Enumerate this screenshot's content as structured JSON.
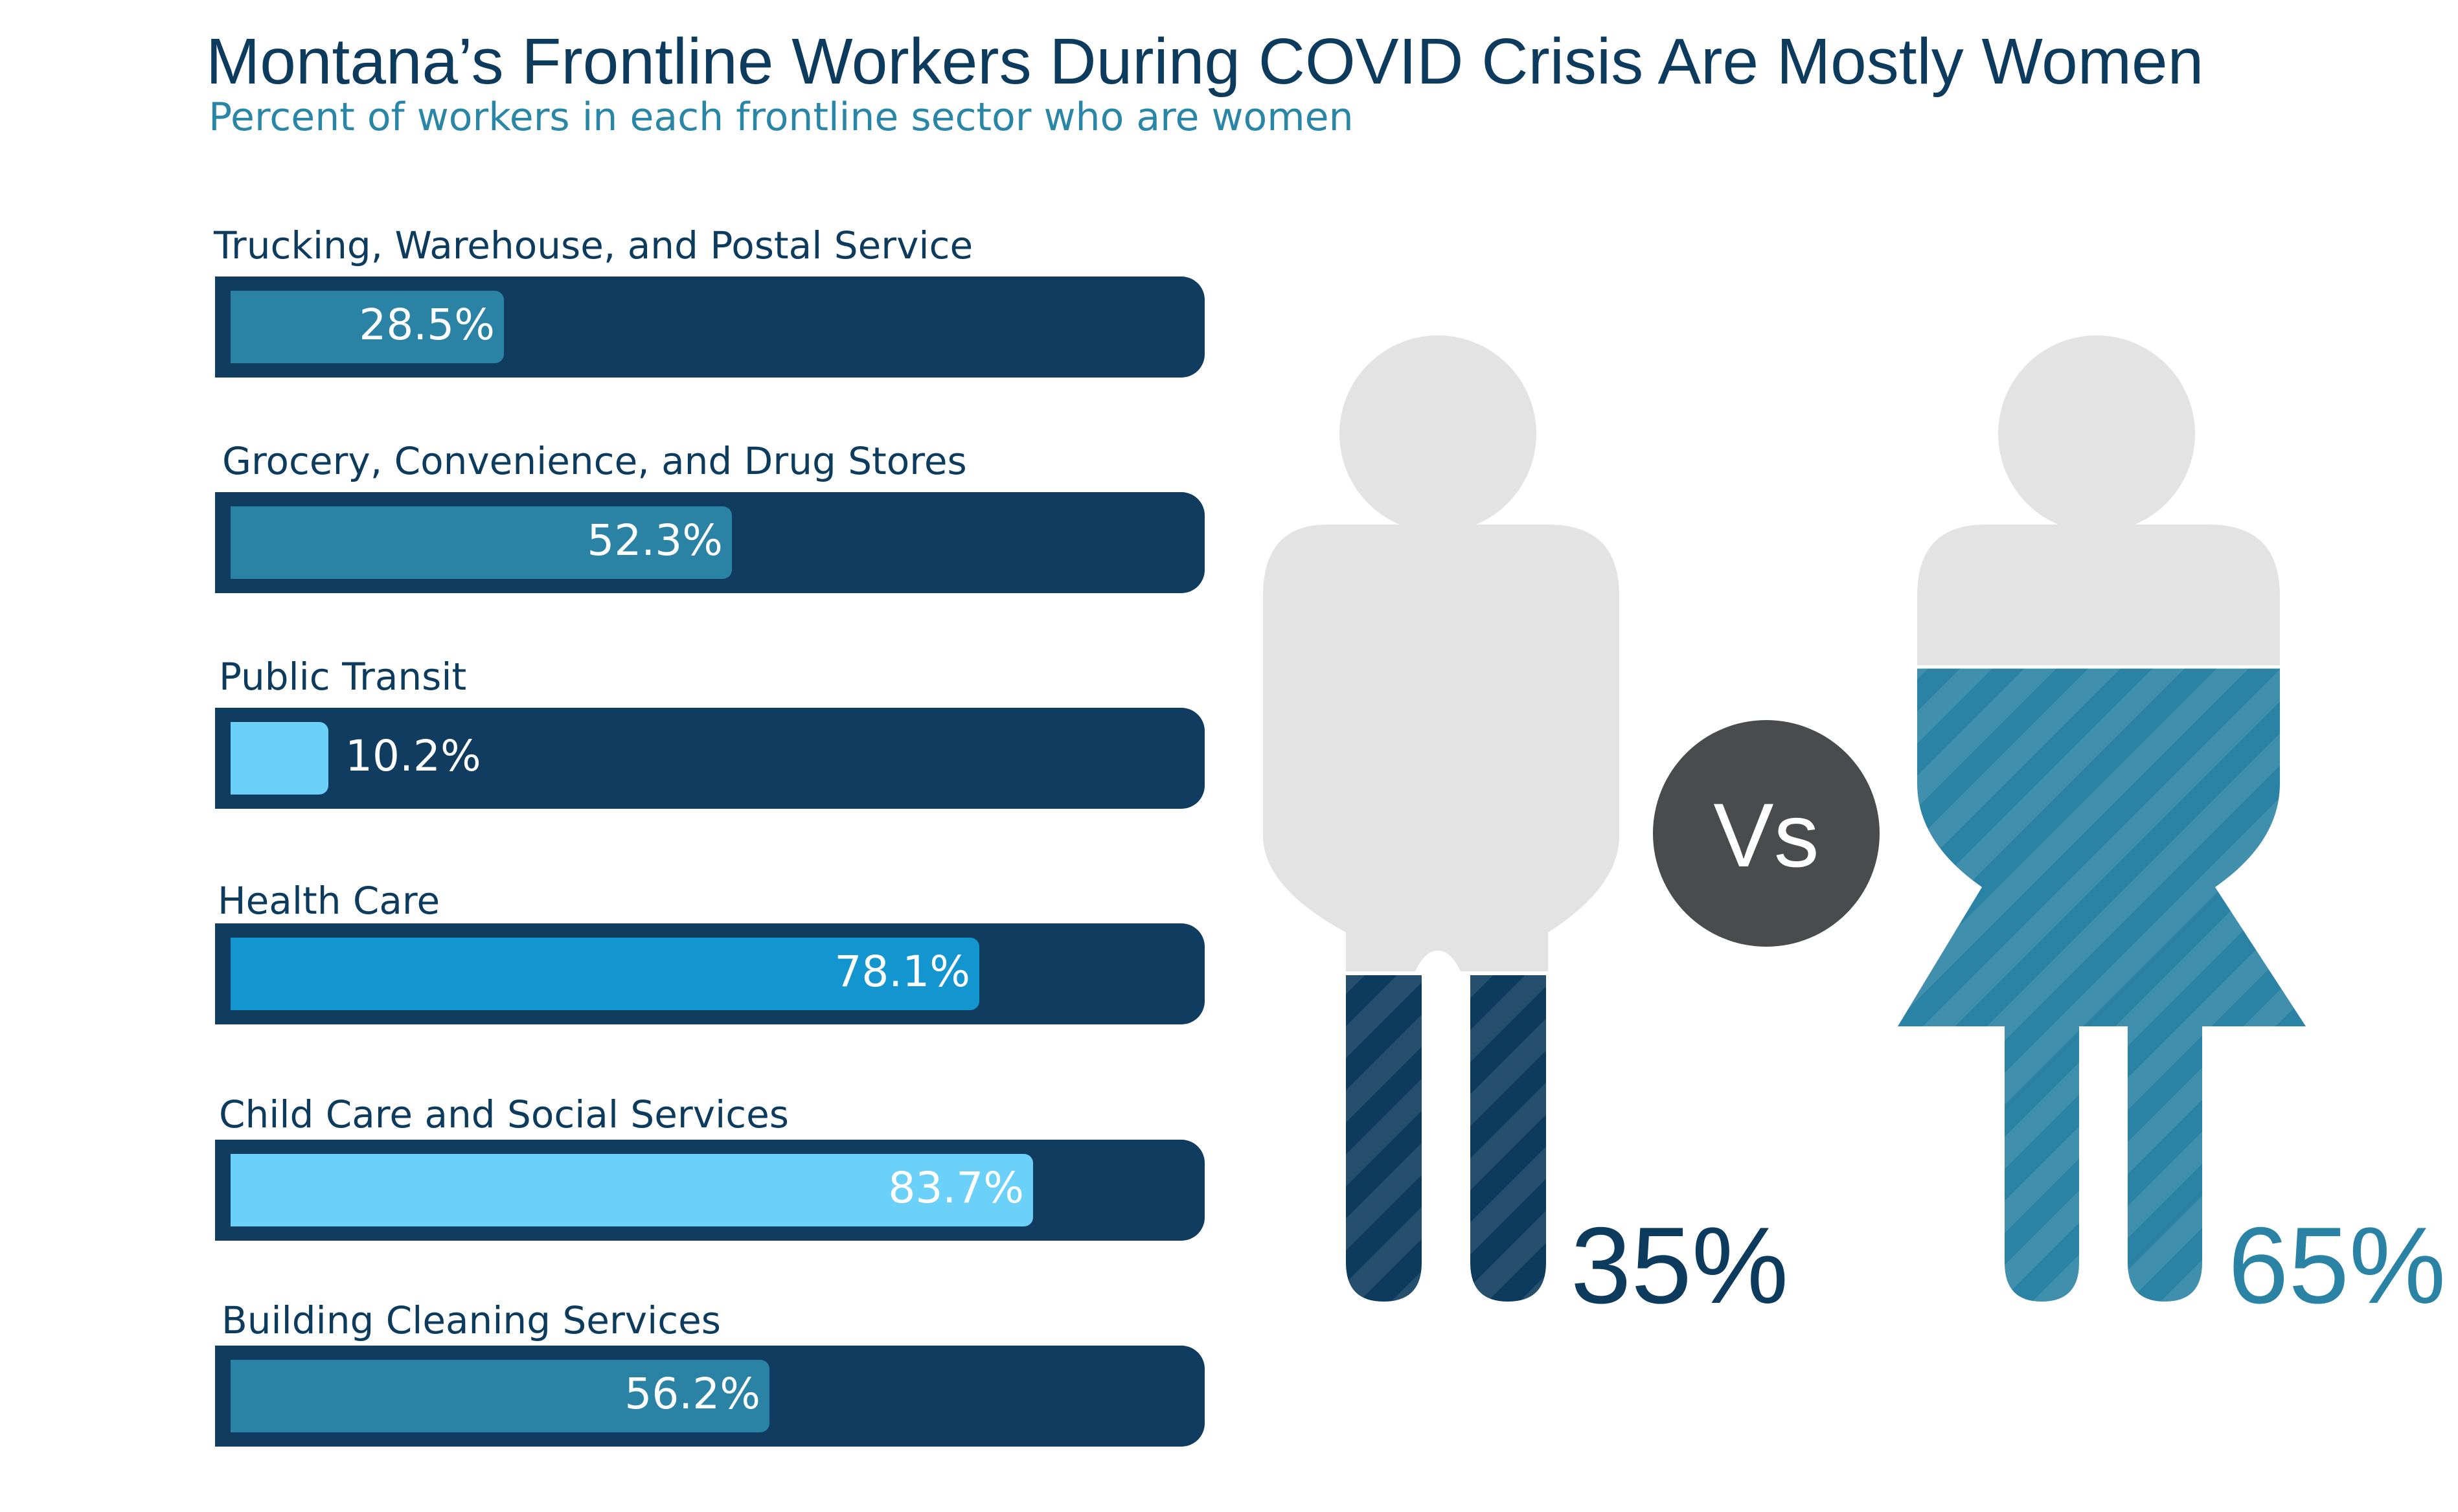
{
  "title": "Montana’s Frontline Workers During COVID Crisis Are Mostly Women",
  "subtitle": "Percent of workers in each frontline sector who are women",
  "chart_data": {
    "type": "bar",
    "categories": [
      "Trucking, Warehouse, and Postal Service",
      "Grocery, Convenience, and Drug Stores",
      "Public Transit",
      "Health Care",
      "Child Care and Social Services",
      "Building Cleaning Services"
    ],
    "values": [
      28.5,
      52.3,
      10.2,
      78.1,
      83.7,
      56.2
    ],
    "labels": [
      "28.5%",
      "52.3%",
      "10.2%",
      "78.1%",
      "83.7%",
      "56.2%"
    ],
    "bar_colors": [
      "#2a83a4",
      "#2a83a4",
      "#6bd1f8",
      "#1396d0",
      "#6bd1f8",
      "#2a83a4"
    ],
    "track_color": "#0f3c5f",
    "xlim": [
      0,
      100
    ]
  },
  "comparison": {
    "vs_label": "Vs",
    "men": {
      "percent_label": "35%",
      "value": 35,
      "color": "#0d3b5e"
    },
    "women": {
      "percent_label": "65%",
      "value": 65,
      "color": "#2a83a4"
    }
  }
}
